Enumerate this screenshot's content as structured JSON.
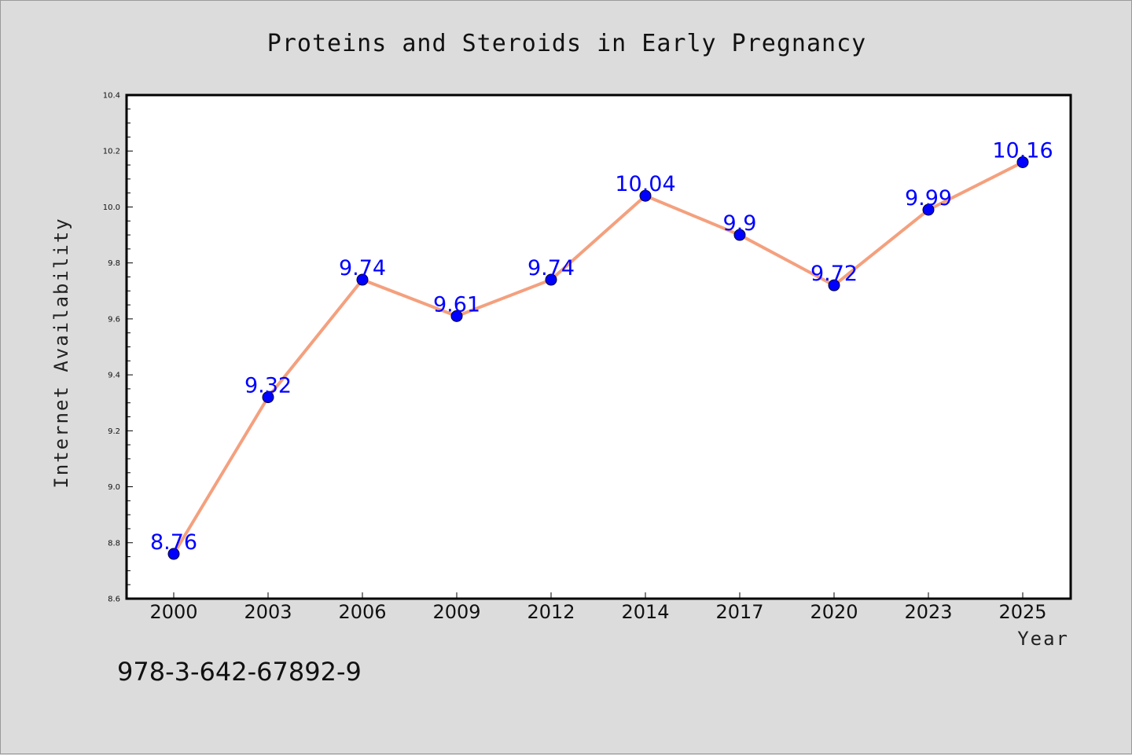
{
  "chart_data": {
    "type": "line",
    "title": "Proteins and Steroids in Early Pregnancy",
    "xlabel": "Year",
    "ylabel": "Internet Availability",
    "categories": [
      "2000",
      "2003",
      "2006",
      "2009",
      "2012",
      "2014",
      "2017",
      "2020",
      "2023",
      "2025"
    ],
    "values": [
      8.76,
      9.32,
      9.74,
      9.61,
      9.74,
      10.04,
      9.9,
      9.72,
      9.99,
      10.16
    ],
    "data_labels": [
      "8.76",
      "9.32",
      "9.74",
      "9.61",
      "9.74",
      "10.04",
      "9.9",
      "9.72",
      "9.99",
      "10.16"
    ],
    "ylim": [
      8.6,
      10.4
    ],
    "yticks": [
      "8.6",
      "8.8",
      "9.0",
      "9.2",
      "9.4",
      "9.6",
      "9.8",
      "10.0",
      "10.2",
      "10.4"
    ],
    "grid": false,
    "line_color": "#f4a07e",
    "marker_color": "#0000ff",
    "label_color": "#0000ff",
    "background_color": "#dcdcdc",
    "plot_background": "#ffffff"
  },
  "annotation": {
    "text": "978-3-642-67892-9"
  }
}
